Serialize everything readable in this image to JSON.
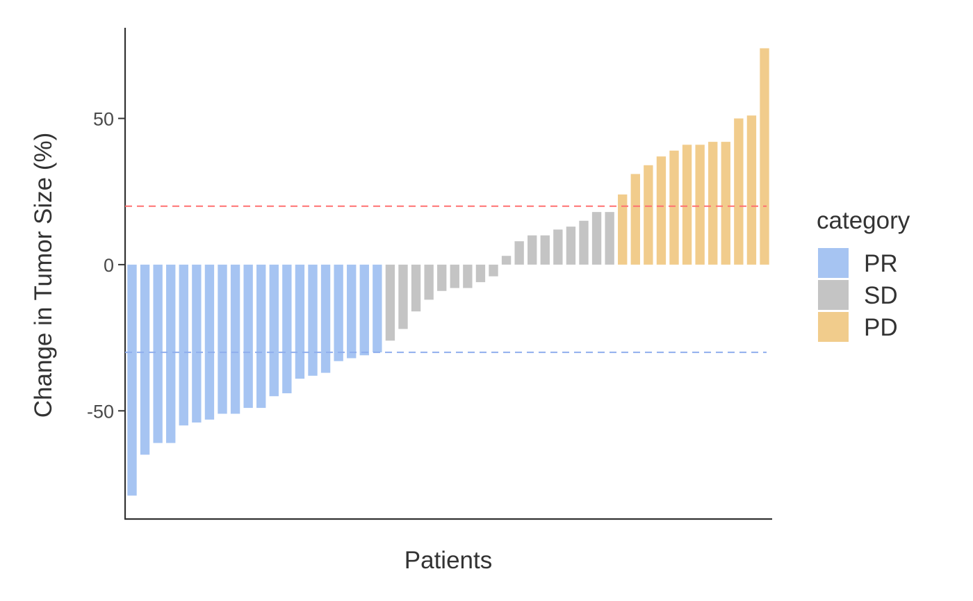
{
  "chart_data": {
    "type": "bar",
    "xlabel": "Patients",
    "ylabel": "Change in Tumor Size (%)",
    "ylim": [
      -87,
      81
    ],
    "yticks": [
      -50,
      0,
      50
    ],
    "grid": false,
    "legend": {
      "title": "category",
      "placement": "right",
      "entries": [
        {
          "name": "PR",
          "color": "#a6c4f2"
        },
        {
          "name": "SD",
          "color": "#c4c4c4"
        },
        {
          "name": "PD",
          "color": "#f1cc8c"
        }
      ]
    },
    "reference_lines": [
      {
        "y": 20,
        "color": "#ff7070"
      },
      {
        "y": -30,
        "color": "#8faeed"
      }
    ],
    "values": [
      -79,
      -65,
      -61,
      -61,
      -55,
      -54,
      -53,
      -51,
      -51,
      -49,
      -49,
      -45,
      -44,
      -39,
      -38,
      -37,
      -33,
      -32,
      -31,
      -30,
      -26,
      -22,
      -16,
      -12,
      -9,
      -8,
      -8,
      -6,
      -4,
      3,
      8,
      10,
      10,
      12,
      13,
      15,
      18,
      18,
      24,
      31,
      34,
      37,
      39,
      41,
      41,
      42,
      42,
      50,
      51,
      74
    ],
    "categories": [
      "PR",
      "PR",
      "PR",
      "PR",
      "PR",
      "PR",
      "PR",
      "PR",
      "PR",
      "PR",
      "PR",
      "PR",
      "PR",
      "PR",
      "PR",
      "PR",
      "PR",
      "PR",
      "PR",
      "PR",
      "SD",
      "SD",
      "SD",
      "SD",
      "SD",
      "SD",
      "SD",
      "SD",
      "SD",
      "SD",
      "SD",
      "SD",
      "SD",
      "SD",
      "SD",
      "SD",
      "SD",
      "SD",
      "PD",
      "PD",
      "PD",
      "PD",
      "PD",
      "PD",
      "PD",
      "PD",
      "PD",
      "PD",
      "PD",
      "PD"
    ]
  }
}
